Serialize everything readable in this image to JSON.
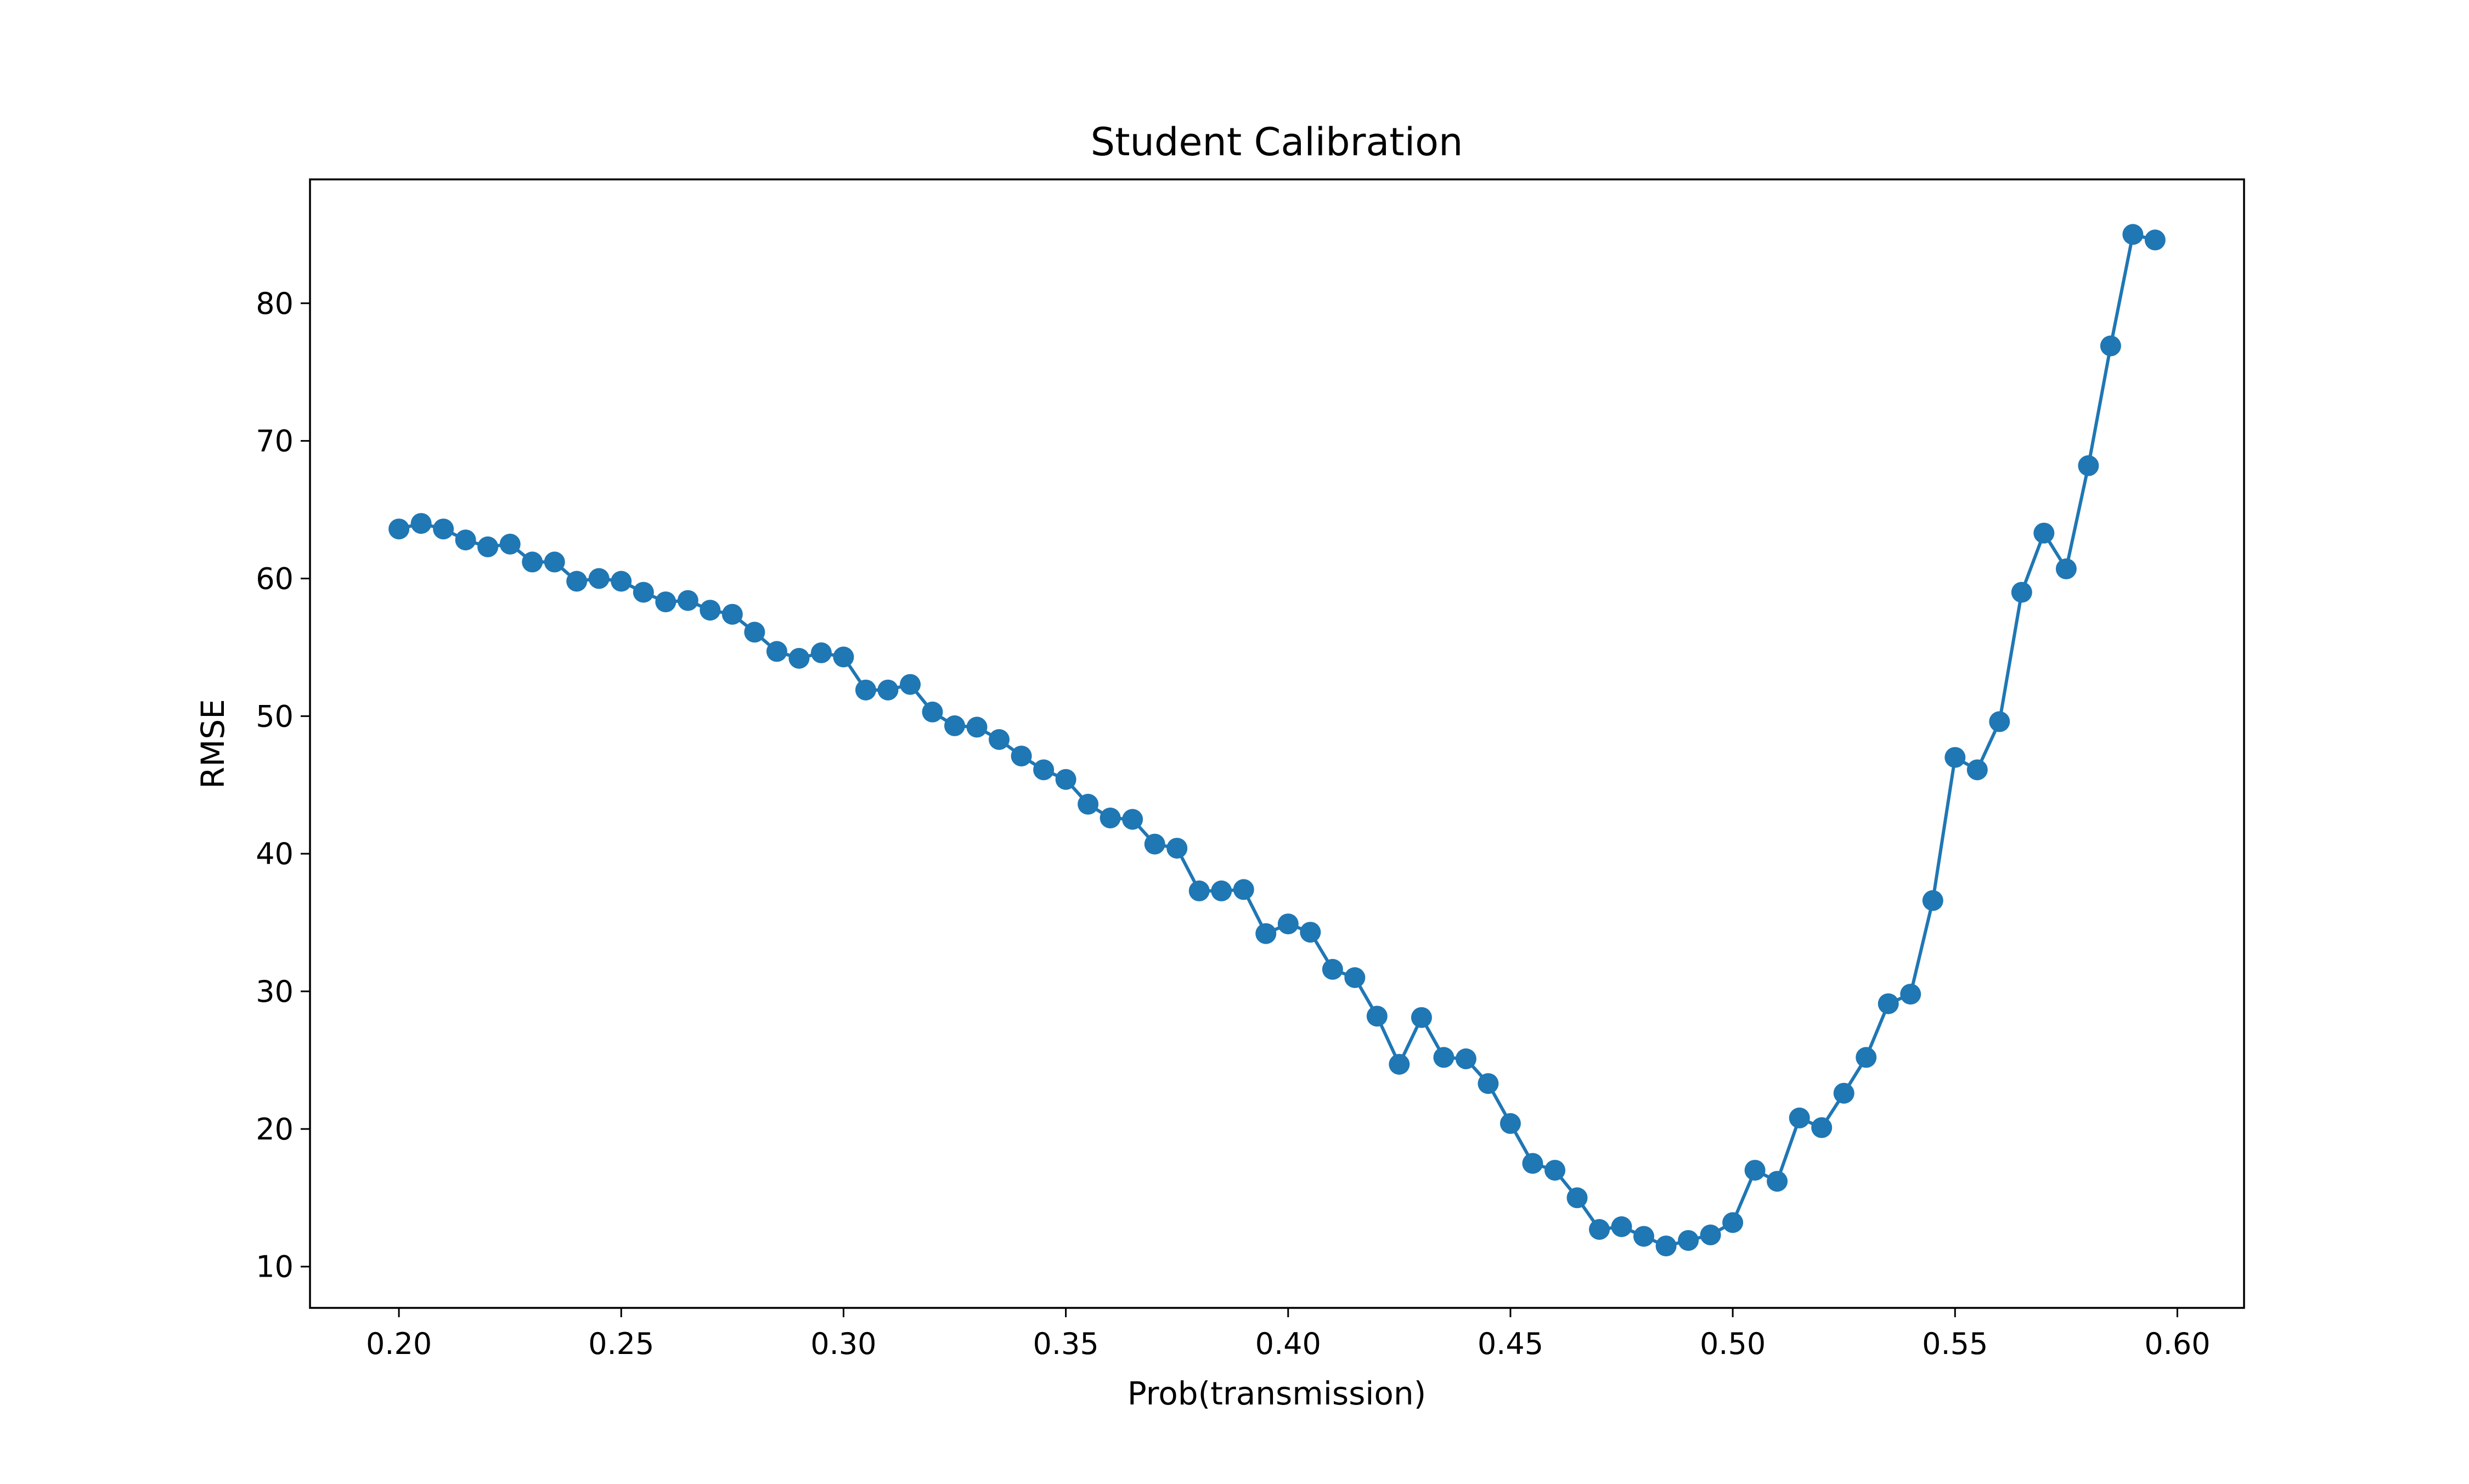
{
  "chart_data": {
    "type": "line",
    "title": "Student Calibration",
    "xlabel": "Prob(transmission)",
    "ylabel": "RMSE",
    "xlim": [
      0.18,
      0.615
    ],
    "ylim": [
      7,
      89
    ],
    "x_ticks": [
      "0.20",
      "0.25",
      "0.30",
      "0.35",
      "0.40",
      "0.45",
      "0.50",
      "0.55",
      "0.60"
    ],
    "y_ticks": [
      "10",
      "20",
      "30",
      "40",
      "50",
      "60",
      "70",
      "80"
    ],
    "grid": false,
    "legend": "none",
    "marker": "circle",
    "color": "#1f77b4",
    "series": [
      {
        "x": [
          0.2,
          0.205,
          0.21,
          0.215,
          0.22,
          0.225,
          0.23,
          0.235,
          0.24,
          0.245,
          0.25,
          0.255,
          0.26,
          0.265,
          0.27,
          0.275,
          0.28,
          0.285,
          0.29,
          0.295,
          0.3,
          0.305,
          0.31,
          0.315,
          0.32,
          0.325,
          0.33,
          0.335,
          0.34,
          0.345,
          0.35,
          0.355,
          0.36,
          0.365,
          0.37,
          0.375,
          0.38,
          0.385,
          0.39,
          0.395,
          0.4,
          0.405,
          0.41,
          0.415,
          0.42,
          0.425,
          0.43,
          0.435,
          0.44,
          0.445,
          0.45,
          0.455,
          0.46,
          0.465,
          0.47,
          0.475,
          0.48,
          0.485,
          0.49,
          0.495,
          0.5,
          0.505,
          0.51,
          0.515,
          0.52,
          0.525,
          0.53,
          0.535,
          0.54,
          0.545,
          0.55,
          0.555,
          0.56,
          0.565,
          0.57,
          0.575,
          0.58,
          0.585,
          0.59,
          0.595
        ],
        "y": [
          63.6,
          64.0,
          63.6,
          62.8,
          62.3,
          62.5,
          61.2,
          61.2,
          59.8,
          60.0,
          59.8,
          59.0,
          58.3,
          58.4,
          57.7,
          57.4,
          56.1,
          54.7,
          54.2,
          54.6,
          54.3,
          51.9,
          51.9,
          52.3,
          50.3,
          49.3,
          49.2,
          48.3,
          47.1,
          46.1,
          45.4,
          43.6,
          42.6,
          42.5,
          40.7,
          40.4,
          37.3,
          37.3,
          37.4,
          34.2,
          34.9,
          34.3,
          31.6,
          31.0,
          28.2,
          24.7,
          28.1,
          25.2,
          25.1,
          23.3,
          20.4,
          17.5,
          17.0,
          15.0,
          12.7,
          12.9,
          12.2,
          11.5,
          11.9,
          12.3,
          13.2,
          17.0,
          16.2,
          20.8,
          20.1,
          22.6,
          25.2,
          29.1,
          29.8,
          36.6,
          47.0,
          46.1,
          49.6,
          59.0,
          63.3,
          60.7,
          68.2,
          76.9,
          85.0,
          84.6
        ]
      }
    ]
  }
}
